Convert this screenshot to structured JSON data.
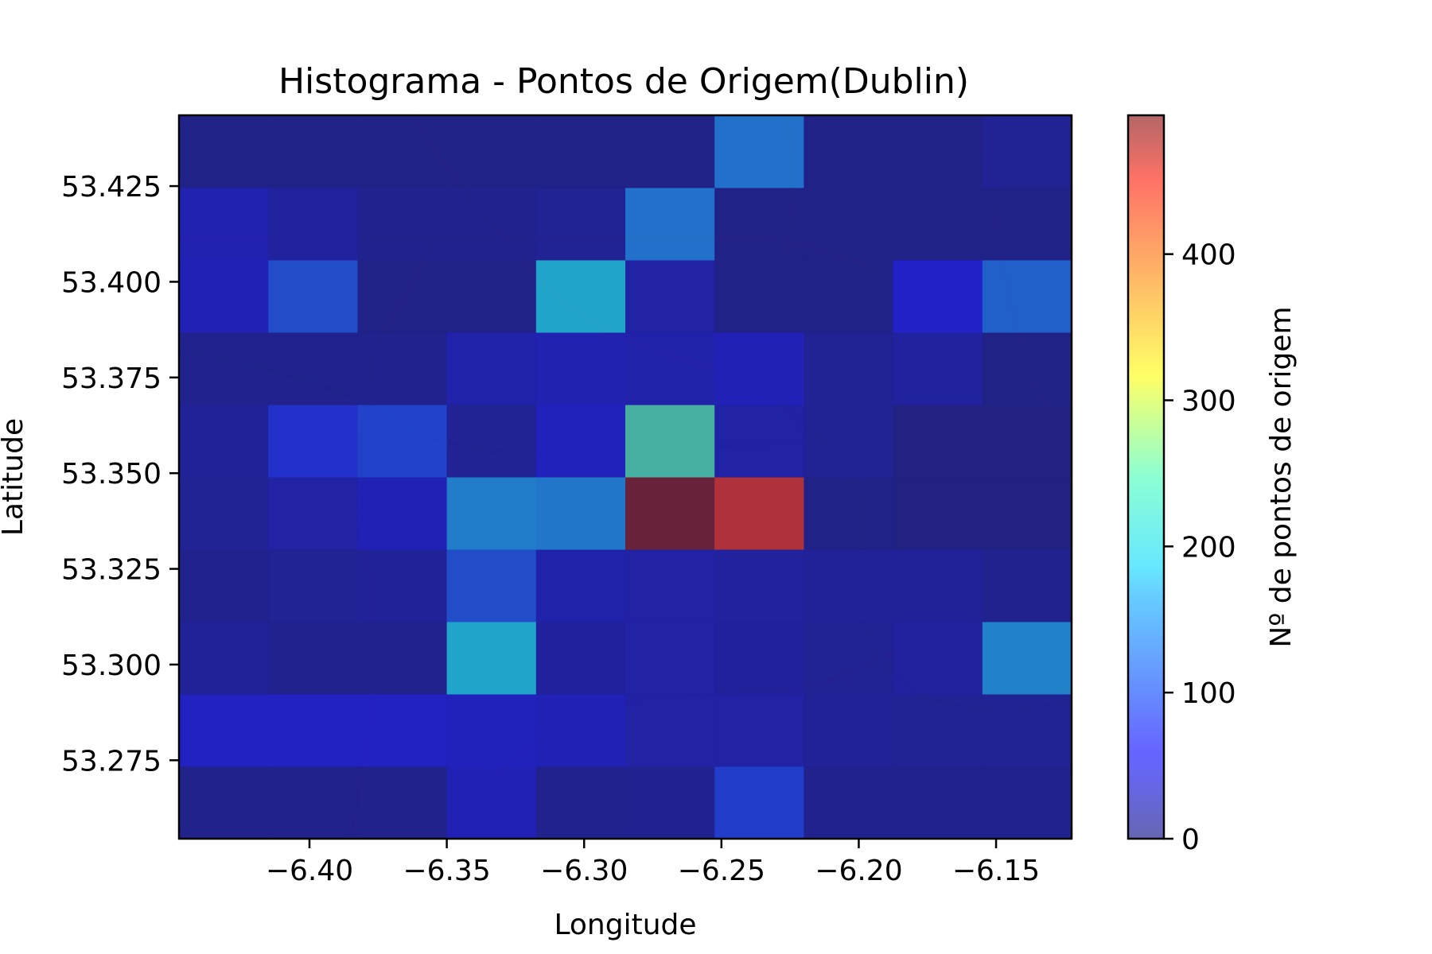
{
  "chart_data": {
    "type": "heatmap",
    "title": "Histograma - Pontos de Origem(Dublin)",
    "xlabel": "Longitude",
    "ylabel": "Latitude",
    "colorbar_label": "Nº de pontos de origem",
    "colormap": "jet",
    "alpha": 0.6,
    "xlim": [
      -6.4475,
      -6.1225
    ],
    "ylim": [
      53.2545,
      53.4435
    ],
    "x_edges": [
      -6.4475,
      -6.415,
      -6.3825,
      -6.35,
      -6.3175,
      -6.285,
      -6.2525,
      -6.22,
      -6.1875,
      -6.155,
      -6.1225
    ],
    "y_edges": [
      53.2545,
      53.2734,
      53.2923,
      53.3112,
      53.3301,
      53.349,
      53.3679,
      53.3868,
      53.4057,
      53.4246,
      53.4435
    ],
    "x_ticks": [
      -6.4,
      -6.35,
      -6.3,
      -6.25,
      -6.2,
      -6.15
    ],
    "x_tick_labels": [
      "−6.40",
      "−6.35",
      "−6.30",
      "−6.25",
      "−6.20",
      "−6.15"
    ],
    "y_ticks": [
      53.275,
      53.3,
      53.325,
      53.35,
      53.375,
      53.4,
      53.425
    ],
    "y_tick_labels": [
      "53.275",
      "53.300",
      "53.325",
      "53.350",
      "53.375",
      "53.400",
      "53.425"
    ],
    "colorbar_range": [
      0,
      495
    ],
    "colorbar_ticks": [
      0,
      100,
      200,
      300,
      400
    ],
    "colorbar_tick_labels": [
      "0",
      "100",
      "200",
      "300",
      "400"
    ],
    "counts": [
      [
        8,
        8,
        8,
        45,
        10,
        12,
        85,
        10,
        10,
        10
      ],
      [
        55,
        55,
        55,
        50,
        45,
        30,
        30,
        18,
        15,
        15
      ],
      [
        20,
        10,
        10,
        175,
        22,
        30,
        22,
        15,
        25,
        145
      ],
      [
        10,
        15,
        20,
        100,
        35,
        30,
        25,
        20,
        20,
        10
      ],
      [
        15,
        30,
        45,
        140,
        135,
        495,
        420,
        5,
        0,
        0
      ],
      [
        20,
        75,
        90,
        15,
        50,
        220,
        30,
        15,
        0,
        0
      ],
      [
        10,
        10,
        10,
        35,
        40,
        35,
        45,
        15,
        25,
        3
      ],
      [
        45,
        100,
        5,
        5,
        175,
        30,
        5,
        5,
        60,
        115
      ],
      [
        40,
        25,
        10,
        10,
        15,
        130,
        5,
        5,
        5,
        5
      ],
      [
        5,
        5,
        5,
        5,
        5,
        5,
        130,
        5,
        5,
        15
      ]
    ]
  }
}
